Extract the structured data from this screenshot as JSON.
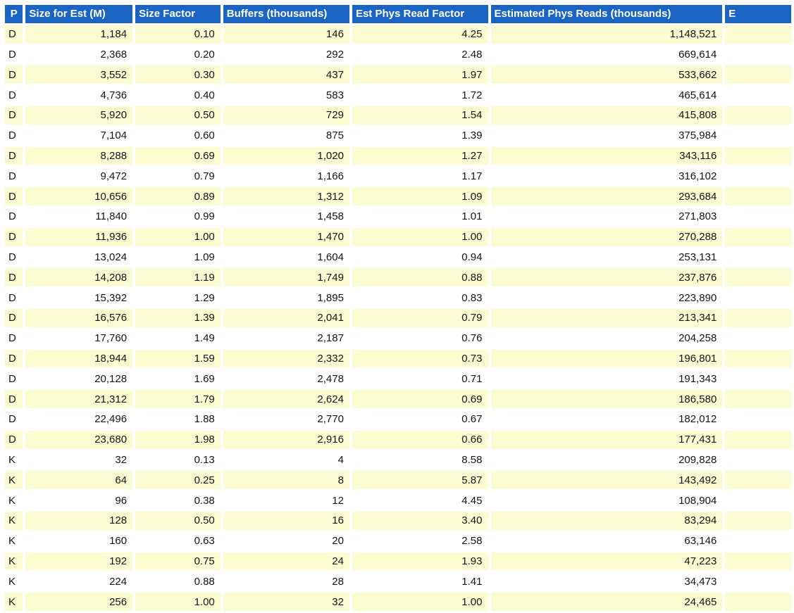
{
  "colors": {
    "header_bg": "#1A64C3",
    "header_text": "#FFFFFF",
    "row_alt_bg": "#FCFCD2",
    "row_bg": "#FFFFFF",
    "body_text": "#141414"
  },
  "table": {
    "columns": [
      {
        "key": "p",
        "label": "P"
      },
      {
        "key": "size_for_est_m",
        "label": "Size for Est (M)"
      },
      {
        "key": "size_factor",
        "label": "Size Factor"
      },
      {
        "key": "buffers_thousands",
        "label": "Buffers (thousands)"
      },
      {
        "key": "est_phys_read_factor",
        "label": "Est Phys Read Factor"
      },
      {
        "key": "estimated_phys_reads_thousands",
        "label": "Estimated Phys Reads (thousands)"
      },
      {
        "key": "truncated_column",
        "label": "E"
      }
    ],
    "rows": [
      [
        "D",
        "1,184",
        "0.10",
        "146",
        "4.25",
        "1,148,521",
        ""
      ],
      [
        "D",
        "2,368",
        "0.20",
        "292",
        "2.48",
        "669,614",
        ""
      ],
      [
        "D",
        "3,552",
        "0.30",
        "437",
        "1.97",
        "533,662",
        ""
      ],
      [
        "D",
        "4,736",
        "0.40",
        "583",
        "1.72",
        "465,614",
        ""
      ],
      [
        "D",
        "5,920",
        "0.50",
        "729",
        "1.54",
        "415,808",
        ""
      ],
      [
        "D",
        "7,104",
        "0.60",
        "875",
        "1.39",
        "375,984",
        ""
      ],
      [
        "D",
        "8,288",
        "0.69",
        "1,020",
        "1.27",
        "343,116",
        ""
      ],
      [
        "D",
        "9,472",
        "0.79",
        "1,166",
        "1.17",
        "316,102",
        ""
      ],
      [
        "D",
        "10,656",
        "0.89",
        "1,312",
        "1.09",
        "293,684",
        ""
      ],
      [
        "D",
        "11,840",
        "0.99",
        "1,458",
        "1.01",
        "271,803",
        ""
      ],
      [
        "D",
        "11,936",
        "1.00",
        "1,470",
        "1.00",
        "270,288",
        ""
      ],
      [
        "D",
        "13,024",
        "1.09",
        "1,604",
        "0.94",
        "253,131",
        ""
      ],
      [
        "D",
        "14,208",
        "1.19",
        "1,749",
        "0.88",
        "237,876",
        ""
      ],
      [
        "D",
        "15,392",
        "1.29",
        "1,895",
        "0.83",
        "223,890",
        ""
      ],
      [
        "D",
        "16,576",
        "1.39",
        "2,041",
        "0.79",
        "213,341",
        ""
      ],
      [
        "D",
        "17,760",
        "1.49",
        "2,187",
        "0.76",
        "204,258",
        ""
      ],
      [
        "D",
        "18,944",
        "1.59",
        "2,332",
        "0.73",
        "196,801",
        ""
      ],
      [
        "D",
        "20,128",
        "1.69",
        "2,478",
        "0.71",
        "191,343",
        ""
      ],
      [
        "D",
        "21,312",
        "1.79",
        "2,624",
        "0.69",
        "186,580",
        ""
      ],
      [
        "D",
        "22,496",
        "1.88",
        "2,770",
        "0.67",
        "182,012",
        ""
      ],
      [
        "D",
        "23,680",
        "1.98",
        "2,916",
        "0.66",
        "177,431",
        ""
      ],
      [
        "K",
        "32",
        "0.13",
        "4",
        "8.58",
        "209,828",
        ""
      ],
      [
        "K",
        "64",
        "0.25",
        "8",
        "5.87",
        "143,492",
        ""
      ],
      [
        "K",
        "96",
        "0.38",
        "12",
        "4.45",
        "108,904",
        ""
      ],
      [
        "K",
        "128",
        "0.50",
        "16",
        "3.40",
        "83,294",
        ""
      ],
      [
        "K",
        "160",
        "0.63",
        "20",
        "2.58",
        "63,146",
        ""
      ],
      [
        "K",
        "192",
        "0.75",
        "24",
        "1.93",
        "47,223",
        ""
      ],
      [
        "K",
        "224",
        "0.88",
        "28",
        "1.41",
        "34,473",
        ""
      ],
      [
        "K",
        "256",
        "1.00",
        "32",
        "1.00",
        "24,465",
        ""
      ]
    ]
  }
}
